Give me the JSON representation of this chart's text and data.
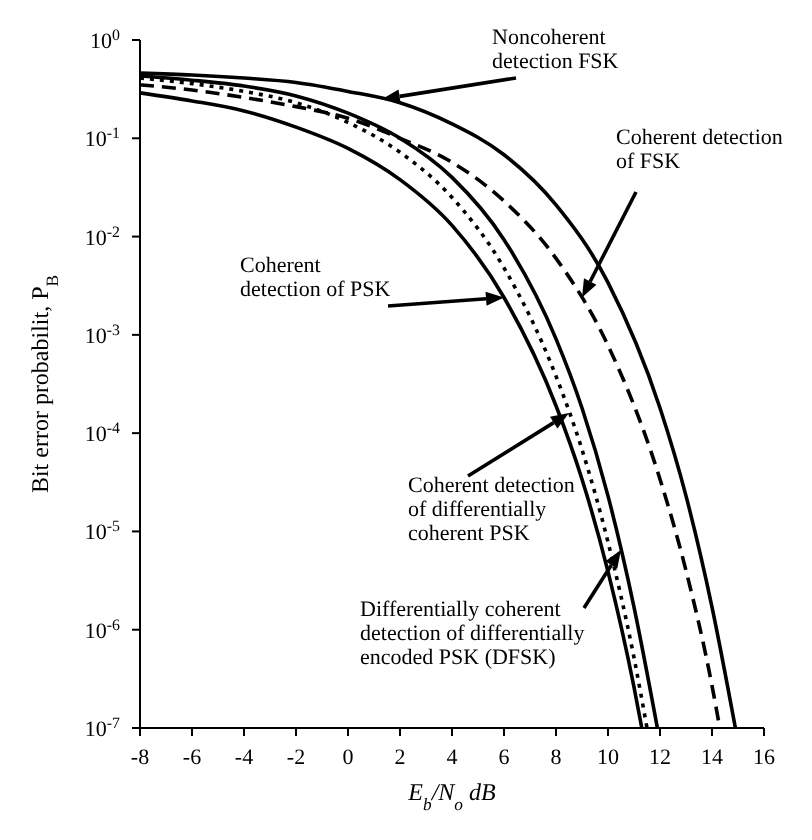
{
  "chart_data": {
    "type": "line",
    "xlabel": "E$_{b}$/N$_{o}$ dB",
    "ylabel": "Bit error probabilit, P$_{B}$",
    "log": "y",
    "marker": "none",
    "xlim": [
      -8,
      16
    ],
    "xticks": [
      -8,
      -6,
      -4,
      -2,
      0,
      2,
      4,
      6,
      8,
      10,
      12,
      14,
      16
    ],
    "ylim": [
      1e-07,
      1
    ],
    "yticks": [
      {
        "value": 1e-07,
        "label": "10$^{-7}$"
      },
      {
        "value": 1e-06,
        "label": "10$^{-6}$"
      },
      {
        "value": 1e-05,
        "label": "10$^{-5}$"
      },
      {
        "value": 0.0001,
        "label": "10$^{-4}$"
      },
      {
        "value": 0.001,
        "label": "10$^{-3}$"
      },
      {
        "value": 0.01,
        "label": "10$^{-2}$"
      },
      {
        "value": 0.1,
        "label": "10$^{-1}$"
      },
      {
        "value": 1,
        "label": "10$^{0}$"
      }
    ],
    "series": [
      {
        "color": "#000000",
        "line_style": "solid",
        "x": [
          -8,
          -6,
          -4,
          -2,
          0,
          2,
          4,
          6,
          8,
          9,
          10,
          11,
          11.3
        ],
        "values": [
          0.29,
          0.24,
          0.19,
          0.13,
          0.079,
          0.038,
          0.013,
          0.0024,
          0.00019,
          3.4e-05,
          3.9e-06,
          2.6e-07,
          1e-07
        ]
      },
      {
        "color": "#000000",
        "line_style": "dotted",
        "x": [
          -8,
          -6,
          -4,
          -2,
          0,
          2,
          4,
          6,
          8,
          9,
          10,
          11,
          11.5
        ],
        "values": [
          0.41,
          0.36,
          0.3,
          0.23,
          0.145,
          0.072,
          0.025,
          0.0048,
          0.00038,
          6.8e-05,
          7.8e-06,
          5.2e-07,
          1e-07
        ]
      },
      {
        "color": "#000000",
        "line_style": "solid",
        "x": [
          -8,
          -6,
          -4,
          -2,
          0,
          2,
          4,
          6,
          8,
          9,
          10,
          11,
          11.9
        ],
        "values": [
          0.43,
          0.39,
          0.34,
          0.27,
          0.18,
          0.1,
          0.04,
          0.0093,
          0.00091,
          0.00018,
          2.3e-05,
          1.7e-06,
          1e-07
        ]
      },
      {
        "color": "#000000",
        "line_style": "dashed",
        "x": [
          -8,
          -6,
          -4,
          -2,
          0,
          2,
          4,
          6,
          8,
          10,
          12,
          13,
          14,
          14.3
        ],
        "values": [
          0.35,
          0.31,
          0.26,
          0.21,
          0.16,
          0.1,
          0.057,
          0.023,
          0.006,
          0.00078,
          3.4e-05,
          4e-06,
          2.7e-07,
          1e-07
        ]
      },
      {
        "color": "#000000",
        "line_style": "solid",
        "x": [
          -8,
          -6,
          -4,
          -2,
          0,
          2,
          4,
          6,
          8,
          10,
          12,
          13,
          14,
          14.9
        ],
        "values": [
          0.46,
          0.44,
          0.41,
          0.37,
          0.3,
          0.23,
          0.14,
          0.068,
          0.021,
          0.0034,
          0.00018,
          2.3e-05,
          1.7e-06,
          1e-07
        ]
      }
    ],
    "annotations": [
      {
        "text": "Noncoherent detection FSK",
        "x": 1.3,
        "y": 0.25
      },
      {
        "text": "Coherent detection of FSK",
        "x": 9,
        "y": 0.0024
      },
      {
        "text": "Coherent detection of PSK",
        "x": 6,
        "y": 0.0024
      },
      {
        "text": "Coherent detection of differentially coherent PSK",
        "x": 8.5,
        "y": 0.00016
      },
      {
        "text": "Differentially coherent detection of differentially encoded PSK (DFSK)",
        "x": 10.5,
        "y": 6.5e-06
      }
    ]
  }
}
